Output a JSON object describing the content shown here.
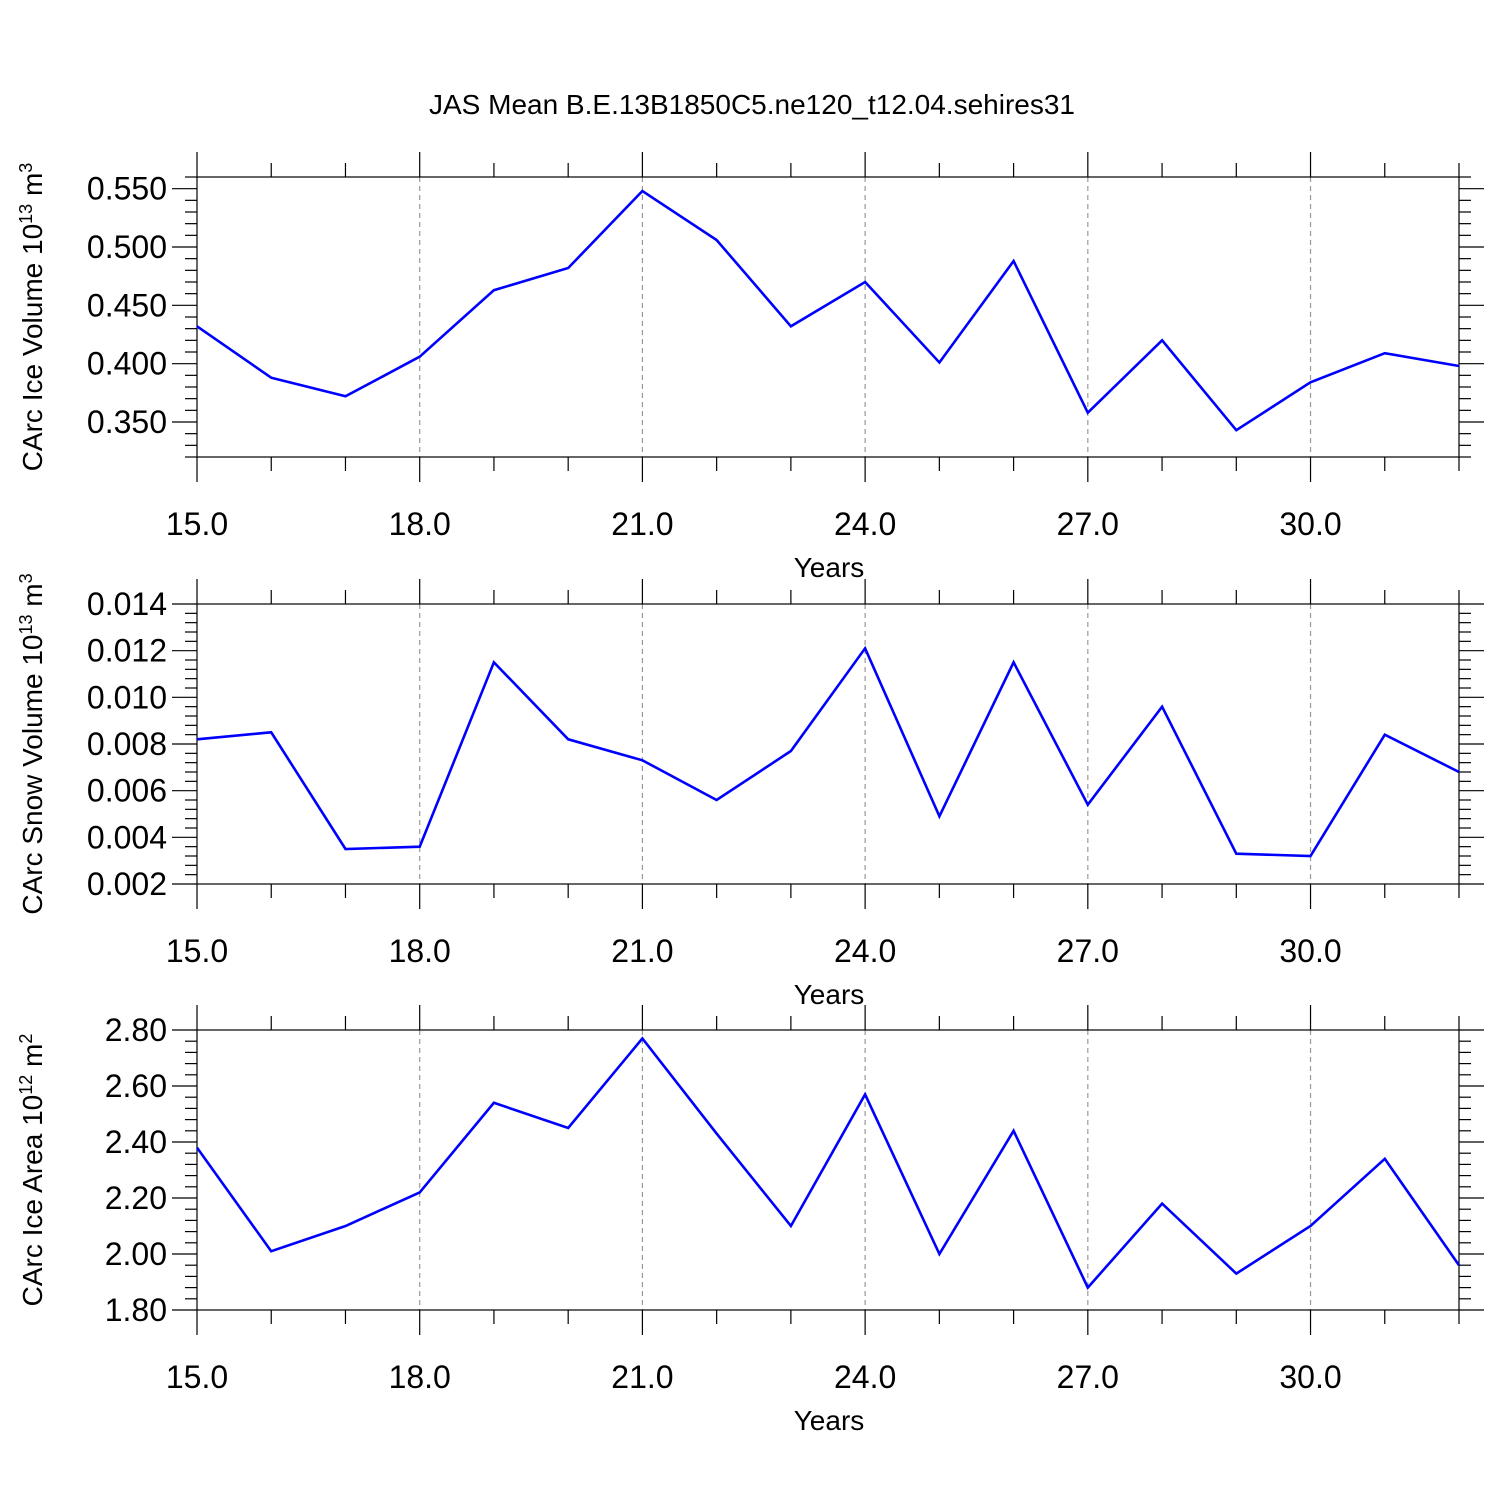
{
  "figure": {
    "title": "JAS Mean B.E.13B1850C5.ne120_t12.04.sehires31"
  },
  "chart_data": [
    {
      "type": "line",
      "ylabel": {
        "base": "CArc Ice Volume 10",
        "exp": "13",
        "unit": " m",
        "unit_exp": "3"
      },
      "xlabel": "Years",
      "xlim": [
        15,
        32
      ],
      "ylim": [
        0.32,
        0.56
      ],
      "xticks": [
        "15.0",
        "18.0",
        "21.0",
        "24.0",
        "27.0",
        "30.0"
      ],
      "yticks": [
        "0.350",
        "0.400",
        "0.450",
        "0.500",
        "0.550"
      ],
      "grid": "dashed vertical at major x ticks",
      "series": [
        {
          "color": "#0000ff",
          "x": [
            15,
            16,
            17,
            18,
            19,
            20,
            21,
            22,
            23,
            24,
            25,
            26,
            27,
            28,
            29,
            30,
            31,
            32
          ],
          "y": [
            0.432,
            0.388,
            0.372,
            0.406,
            0.463,
            0.482,
            0.548,
            0.506,
            0.432,
            0.47,
            0.401,
            0.488,
            0.358,
            0.42,
            0.343,
            0.384,
            0.409,
            0.398
          ]
        }
      ]
    },
    {
      "type": "line",
      "ylabel": {
        "base": "CArc Snow Volume 10",
        "exp": "13",
        "unit": " m",
        "unit_exp": "3"
      },
      "xlabel": "Years",
      "xlim": [
        15,
        32
      ],
      "ylim": [
        0.002,
        0.014
      ],
      "xticks": [
        "15.0",
        "18.0",
        "21.0",
        "24.0",
        "27.0",
        "30.0"
      ],
      "yticks": [
        "0.002",
        "0.004",
        "0.006",
        "0.008",
        "0.010",
        "0.012",
        "0.014"
      ],
      "grid": "dashed vertical at major x ticks",
      "series": [
        {
          "color": "#0000ff",
          "x": [
            15,
            16,
            17,
            18,
            19,
            20,
            21,
            22,
            23,
            24,
            25,
            26,
            27,
            28,
            29,
            30,
            31,
            32
          ],
          "y": [
            0.0082,
            0.0085,
            0.0035,
            0.0036,
            0.0115,
            0.0082,
            0.0073,
            0.0056,
            0.0077,
            0.0121,
            0.0049,
            0.0115,
            0.0054,
            0.0096,
            0.0033,
            0.0032,
            0.0084,
            0.0068
          ]
        }
      ]
    },
    {
      "type": "line",
      "ylabel": {
        "base": "CArc Ice Area 10",
        "exp": "12",
        "unit": " m",
        "unit_exp": "2"
      },
      "xlabel": "Years",
      "xlim": [
        15,
        32
      ],
      "ylim": [
        1.8,
        2.8
      ],
      "xticks": [
        "15.0",
        "18.0",
        "21.0",
        "24.0",
        "27.0",
        "30.0"
      ],
      "yticks": [
        "1.80",
        "2.00",
        "2.20",
        "2.40",
        "2.60",
        "2.80"
      ],
      "grid": "dashed vertical at major x ticks",
      "series": [
        {
          "color": "#0000ff",
          "x": [
            15,
            16,
            17,
            18,
            19,
            20,
            21,
            22,
            23,
            24,
            25,
            26,
            27,
            28,
            29,
            30,
            31,
            32
          ],
          "y": [
            2.38,
            2.01,
            2.1,
            2.22,
            2.54,
            2.45,
            2.77,
            2.43,
            2.1,
            2.57,
            2.0,
            2.44,
            1.88,
            2.18,
            1.93,
            2.1,
            2.34,
            1.96
          ]
        }
      ]
    }
  ]
}
